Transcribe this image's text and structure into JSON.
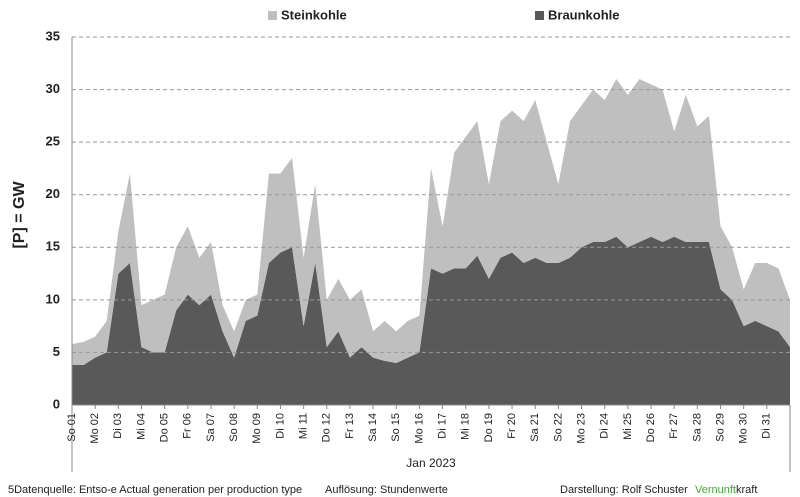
{
  "chart_data": {
    "type": "stacked_area",
    "y_label": "[P]  = GW",
    "x_label": "Jan 2023",
    "x": [
      1,
      1.5,
      2,
      2.5,
      3,
      3.5,
      4,
      4.5,
      5,
      5.5,
      6,
      6.5,
      7,
      7.5,
      8,
      8.5,
      9,
      9.5,
      10,
      10.5,
      11,
      11.5,
      12,
      12.5,
      13,
      13.5,
      14,
      14.5,
      15,
      15.5,
      16,
      16.5,
      17,
      17.5,
      18,
      18.5,
      19,
      19.5,
      20,
      20.5,
      21,
      21.5,
      22,
      22.5,
      23,
      23.5,
      24,
      24.5,
      25,
      25.5,
      26,
      26.5,
      27,
      27.5,
      28,
      28.5,
      29,
      29.5,
      30,
      30.5,
      31,
      31.5,
      32
    ],
    "series": [
      {
        "name": "Braunkohle",
        "color": "#595959",
        "values": [
          3.8,
          3.8,
          4.5,
          5,
          12.5,
          13.5,
          5.5,
          5,
          5,
          9,
          10.5,
          9.5,
          10.5,
          7,
          4.5,
          8,
          8.5,
          13.5,
          14.5,
          15,
          7.5,
          13.5,
          5.5,
          7,
          4.5,
          5.5,
          4.5,
          4.2,
          4,
          4.5,
          5,
          13,
          12.5,
          13,
          13,
          14.2,
          12,
          14,
          14.5,
          13.5,
          14,
          13.5,
          13.5,
          14,
          15,
          15.5,
          15.5,
          16,
          15,
          15.5,
          16,
          15.5,
          16,
          15.5,
          15.5,
          15.5,
          11,
          10,
          7.5,
          8,
          7.5,
          7,
          5.5
        ]
      },
      {
        "name": "Steinkohle",
        "color": "#bfbfbf",
        "values": [
          2,
          2.2,
          2,
          3,
          4,
          8.5,
          4,
          5,
          5.5,
          6,
          6.5,
          4.5,
          5,
          2.5,
          2.5,
          2,
          2,
          8.5,
          7.5,
          8.5,
          6.5,
          7.5,
          4.5,
          5,
          5.5,
          5.5,
          2.5,
          3.8,
          3,
          3.5,
          3.5,
          9.5,
          4.5,
          11,
          12.5,
          12.8,
          9,
          13,
          13.5,
          13.5,
          15,
          11.5,
          7.5,
          13,
          13.5,
          14.5,
          13.5,
          15,
          14.5,
          15.5,
          14.5,
          14.5,
          10,
          14,
          11,
          12,
          6,
          5,
          3.5,
          5.5,
          6,
          6,
          4.5
        ]
      }
    ],
    "xlim": [
      1,
      32
    ],
    "xticks": [
      {
        "value": 1,
        "label": "So 01"
      },
      {
        "value": 2,
        "label": "Mo 02"
      },
      {
        "value": 3,
        "label": "Di 03"
      },
      {
        "value": 4,
        "label": "Mi 04"
      },
      {
        "value": 5,
        "label": "Do 05"
      },
      {
        "value": 6,
        "label": "Fr 06"
      },
      {
        "value": 7,
        "label": "Sa 07"
      },
      {
        "value": 8,
        "label": "So 08"
      },
      {
        "value": 9,
        "label": "Mo 09"
      },
      {
        "value": 10,
        "label": "Di 10"
      },
      {
        "value": 11,
        "label": "Mi 11"
      },
      {
        "value": 12,
        "label": "Do 12"
      },
      {
        "value": 13,
        "label": "Fr 13"
      },
      {
        "value": 14,
        "label": "Sa 14"
      },
      {
        "value": 15,
        "label": "So 15"
      },
      {
        "value": 16,
        "label": "Mo 16"
      },
      {
        "value": 17,
        "label": "Di 17"
      },
      {
        "value": 18,
        "label": "Mi 18"
      },
      {
        "value": 19,
        "label": "Do 19"
      },
      {
        "value": 20,
        "label": "Fr 20"
      },
      {
        "value": 21,
        "label": "Sa 21"
      },
      {
        "value": 22,
        "label": "So 22"
      },
      {
        "value": 23,
        "label": "Mo 23"
      },
      {
        "value": 24,
        "label": "Di 24"
      },
      {
        "value": 25,
        "label": "Mi 25"
      },
      {
        "value": 26,
        "label": "Do 26"
      },
      {
        "value": 27,
        "label": "Fr 27"
      },
      {
        "value": 28,
        "label": "Sa 28"
      },
      {
        "value": 29,
        "label": "So 29"
      },
      {
        "value": 30,
        "label": "Mo 30"
      },
      {
        "value": 31,
        "label": "Di 31"
      }
    ],
    "ylim": [
      0,
      35
    ],
    "yticks": [
      0,
      5,
      10,
      15,
      20,
      25,
      30,
      35
    ],
    "grid": true,
    "legend": "top"
  },
  "footer": {
    "source": "5Datenquelle: Entso-e  Actual generation per production type",
    "resolution": "Auflösung: Stundenwerte",
    "author": "Darstellung:  Rolf Schuster",
    "brand_1": "Vernunft",
    "brand_2": "kraft"
  }
}
